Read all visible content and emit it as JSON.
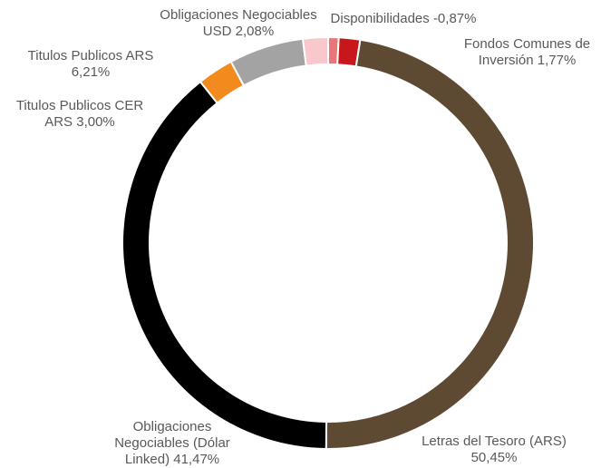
{
  "chart_data": {
    "type": "donut",
    "categories": [
      "Disponibilidades",
      "Fondos Comunes de Inversión",
      "Letras del Tesoro (ARS)",
      "Obligaciones Negociables (Dólar Linked)",
      "Titulos Publicos CER ARS",
      "Titulos Publicos ARS",
      "Obligaciones Negociables USD"
    ],
    "values": [
      -0.87,
      1.77,
      50.45,
      41.47,
      3.0,
      6.21,
      2.08
    ],
    "value_labels": [
      "-0,87%",
      "1,77%",
      "50,45%",
      "41,47%",
      "3,00%",
      "6,21%",
      "2,08%"
    ],
    "colors": [
      "#e8767a",
      "#c8161d",
      "#5e4a33",
      "#000000",
      "#f28a1e",
      "#a3a3a3",
      "#f8c8cd"
    ]
  }
}
